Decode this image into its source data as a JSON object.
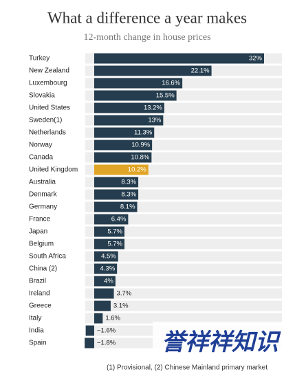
{
  "chart_data": {
    "type": "bar",
    "orientation": "horizontal",
    "title": "What a difference a year makes",
    "subtitle": "12-month change in house prices",
    "categories": [
      "Turkey",
      "New Zealand",
      "Luxembourg",
      "Slovakia",
      "United States",
      "Sweden(1)",
      "Netherlands",
      "Norway",
      "Canada",
      "United Kingdom",
      "Australia",
      "Denmark",
      "Germany",
      "France",
      "Japan",
      "Belgium",
      "South Africa",
      "China (2)",
      "Brazil",
      "Ireland",
      "Greece",
      "Italy",
      "India",
      "Spain"
    ],
    "values": [
      32,
      22.1,
      16.6,
      15.5,
      13.2,
      13,
      11.3,
      10.9,
      10.8,
      10.2,
      8.3,
      8.3,
      8.1,
      6.4,
      5.7,
      5.7,
      4.5,
      4.3,
      4,
      3.7,
      3.1,
      1.6,
      -1.6,
      -1.8
    ],
    "value_labels": [
      "32%",
      "22.1%",
      "16.6%",
      "15.5%",
      "13.2%",
      "13%",
      "11.3%",
      "10.9%",
      "10.8%",
      "10.2%",
      "8.3%",
      "8.3%",
      "8.1%",
      "6.4%",
      "5.7%",
      "5.7%",
      "4.5%",
      "4.3%",
      "4%",
      "3.7%",
      "3.1%",
      "1.6%",
      "−1.6%",
      "−1.8%"
    ],
    "colors": [
      "#253d4e",
      "#253d4e",
      "#253d4e",
      "#253d4e",
      "#253d4e",
      "#253d4e",
      "#253d4e",
      "#253d4e",
      "#253d4e",
      "#e0a526",
      "#253d4e",
      "#253d4e",
      "#253d4e",
      "#253d4e",
      "#253d4e",
      "#253d4e",
      "#253d4e",
      "#253d4e",
      "#253d4e",
      "#253d4e",
      "#253d4e",
      "#253d4e",
      "#253d4e",
      "#253d4e"
    ],
    "footnote": "(1) Provisional, (2) Chinese Mainland primary market"
  },
  "watermark": "誉祥祥知识"
}
